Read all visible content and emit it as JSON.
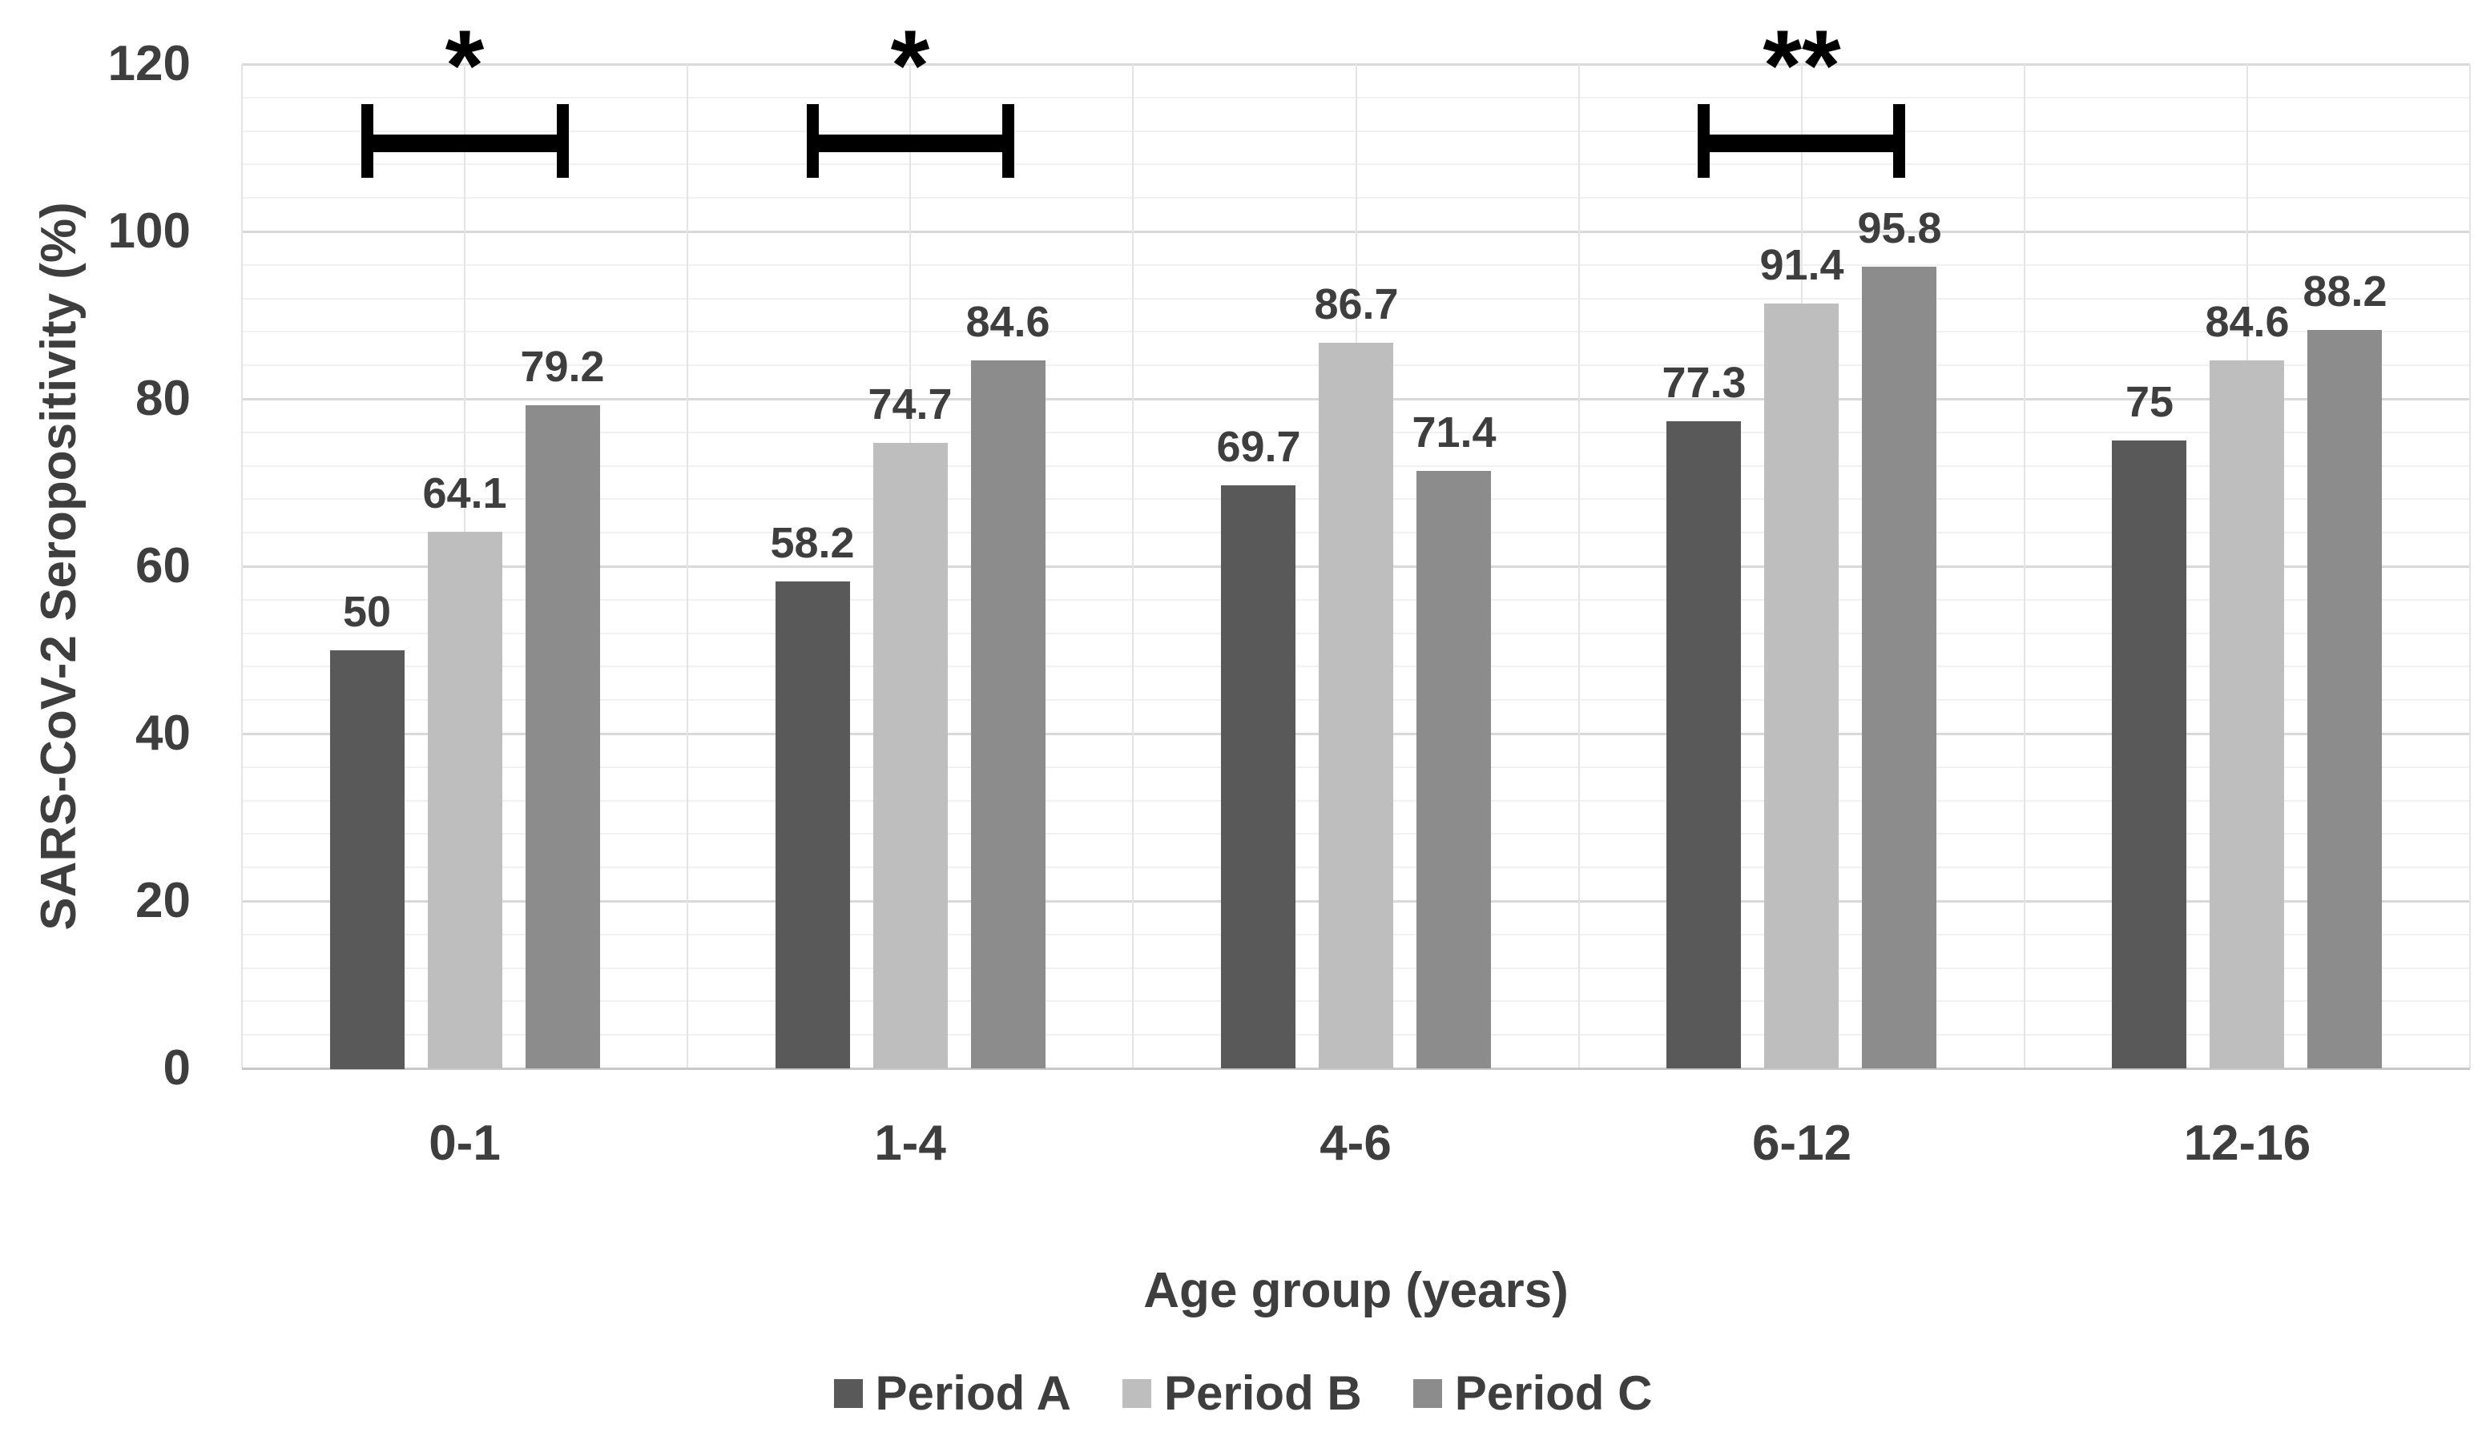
{
  "chart_data": {
    "type": "bar",
    "title": "",
    "xlabel": "Age group (years)",
    "ylabel": "SARS-CoV-2 Seropositivity (%)",
    "categories": [
      "0-1",
      "1-4",
      "4-6",
      "6-12",
      "12-16"
    ],
    "series": [
      {
        "name": "Period A",
        "color": "#595959",
        "values": [
          50,
          58.2,
          69.7,
          77.3,
          75
        ]
      },
      {
        "name": "Period B",
        "color": "#BEBEBE",
        "values": [
          64.1,
          74.7,
          86.7,
          91.4,
          84.6
        ]
      },
      {
        "name": "Period C",
        "color": "#8C8C8C",
        "values": [
          79.2,
          84.6,
          71.4,
          95.8,
          88.2
        ]
      }
    ],
    "ylim": [
      0,
      120
    ],
    "yticks": [
      0,
      20,
      40,
      60,
      80,
      100,
      120
    ],
    "y_minor_unit": 4,
    "grid": true,
    "legend_position": "bottom",
    "significance": [
      {
        "category_index": 0,
        "label": "*"
      },
      {
        "category_index": 1,
        "label": "*"
      },
      {
        "category_index": 3,
        "label": "**"
      }
    ]
  },
  "style_colors": {
    "text": "#3E3E3E",
    "major_gridline": "#D9D9D9",
    "minor_gridline": "#F1F1F1",
    "vertical_gridline": "#E4E4E4",
    "baseline": "#C9C9C9",
    "annotation": "#000000"
  }
}
